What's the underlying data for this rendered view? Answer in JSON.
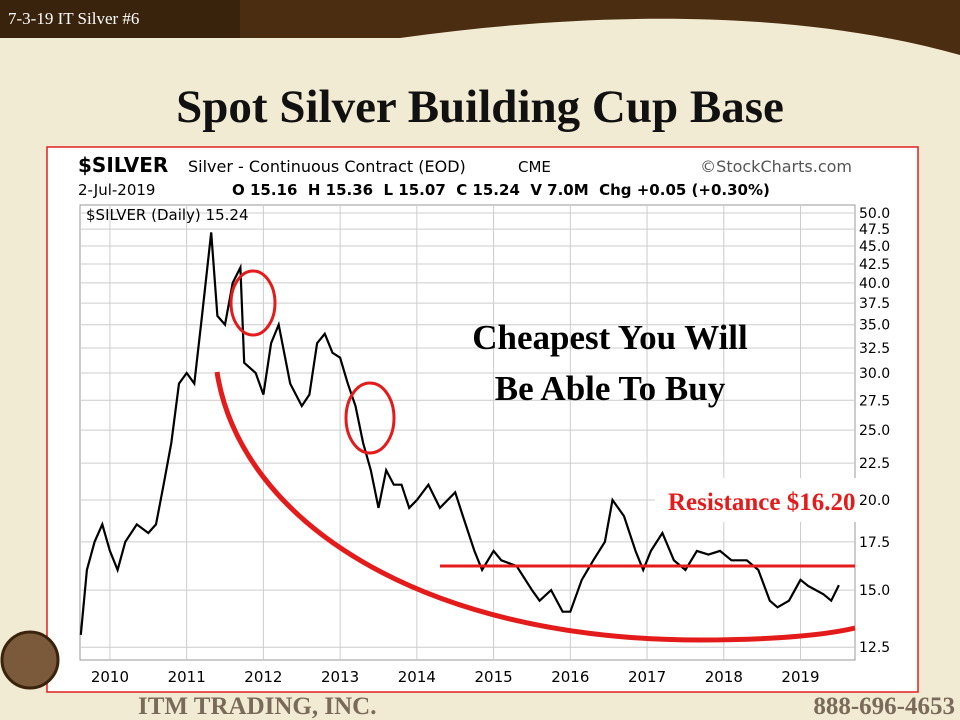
{
  "slide": {
    "tag": "7-3-19 IT Silver #6",
    "title": "Spot Silver Building Cup Base",
    "footer_left": "ITM TRADING, INC.",
    "footer_right": "888-696-4653"
  },
  "chart_data": {
    "type": "line",
    "symbol": "$SILVER",
    "name": "Silver - Continuous Contract (EOD)",
    "exchange": "CME",
    "source": "©StockCharts.com",
    "date": "2-Jul-2019",
    "quote": "O 15.16  H 15.36  L 15.07  C 15.24  V 7.0M  Chg +0.05 (+0.30%)",
    "legend": "$SILVER (Daily) 15.24",
    "annotation": [
      "Cheapest You Will",
      "Be Able To Buy"
    ],
    "resistance_label": "Resistance $16.20",
    "resistance": 16.2,
    "log_scale": true,
    "grid": true,
    "xlim": [
      2009.61,
      2019.71
    ],
    "xticks": [
      2010,
      2011,
      2012,
      2013,
      2014,
      2015,
      2016,
      2017,
      2018,
      2019
    ],
    "ylim": [
      12.0,
      51.3
    ],
    "yticks": [
      12.5,
      {
        "value": 15,
        "label": "15.0"
      },
      17.5,
      {
        "value": 20,
        "label": "20.0"
      },
      22.5,
      {
        "value": 25,
        "label": "25.0"
      },
      27.5,
      {
        "value": 30,
        "label": "30.0"
      },
      32.5,
      {
        "value": 35,
        "label": "35.0"
      },
      37.5,
      {
        "value": 40,
        "label": "40.0"
      },
      42.5,
      {
        "value": 45,
        "label": "45.0"
      },
      47.5,
      {
        "value": 50,
        "label": "50.0"
      }
    ],
    "series": [
      {
        "name": "$SILVER",
        "color": "#000000",
        "x": [
          2009.62,
          2009.7,
          2009.8,
          2009.9,
          2010.0,
          2010.1,
          2010.2,
          2010.35,
          2010.5,
          2010.6,
          2010.7,
          2010.8,
          2010.9,
          2011.0,
          2011.1,
          2011.2,
          2011.32,
          2011.4,
          2011.5,
          2011.6,
          2011.7,
          2011.75,
          2011.9,
          2012.0,
          2012.1,
          2012.2,
          2012.35,
          2012.5,
          2012.6,
          2012.7,
          2012.8,
          2012.9,
          2013.0,
          2013.1,
          2013.2,
          2013.3,
          2013.4,
          2013.5,
          2013.6,
          2013.7,
          2013.8,
          2013.9,
          2014.0,
          2014.15,
          2014.3,
          2014.5,
          2014.6,
          2014.75,
          2014.85,
          2015.0,
          2015.1,
          2015.3,
          2015.5,
          2015.6,
          2015.75,
          2015.9,
          2016.0,
          2016.15,
          2016.3,
          2016.45,
          2016.55,
          2016.7,
          2016.85,
          2016.95,
          2017.05,
          2017.2,
          2017.35,
          2017.5,
          2017.65,
          2017.8,
          2017.95,
          2018.1,
          2018.3,
          2018.45,
          2018.6,
          2018.7,
          2018.85,
          2019.0,
          2019.1,
          2019.3,
          2019.4,
          2019.5
        ],
        "values": [
          13.0,
          16,
          17.5,
          18.5,
          17,
          16,
          17.5,
          18.5,
          18,
          18.5,
          21,
          24,
          29,
          30,
          29,
          36,
          47,
          36,
          35,
          40,
          42,
          31,
          30,
          28,
          33,
          35,
          29,
          27,
          28,
          33,
          34,
          32,
          31.5,
          29,
          27,
          24,
          22,
          19.5,
          22,
          21,
          21,
          19.5,
          20,
          21,
          19.5,
          20.5,
          19,
          17,
          16,
          17,
          16.5,
          16.2,
          15,
          14.5,
          15,
          14,
          14,
          15.5,
          16.5,
          17.5,
          20,
          19,
          17,
          16,
          17,
          18,
          16.5,
          16,
          17,
          16.8,
          17,
          16.5,
          16.5,
          16,
          14.5,
          14.2,
          14.5,
          15.5,
          15.2,
          14.8,
          14.5,
          15.24
        ]
      }
    ]
  }
}
